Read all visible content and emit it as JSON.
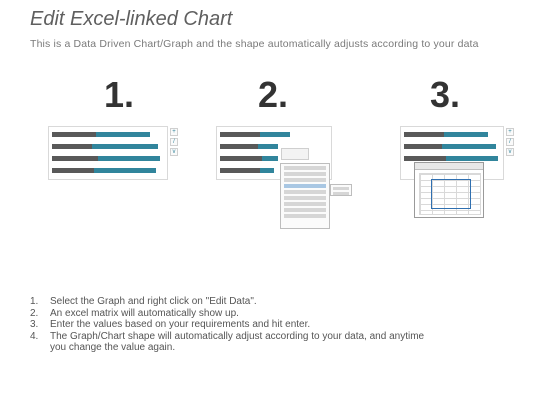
{
  "header": {
    "title": "Edit Excel-linked Chart",
    "subtitle": "This is a Data Driven Chart/Graph and the shape automatically adjusts according to your data"
  },
  "steps": [
    {
      "number": "1."
    },
    {
      "number": "2."
    },
    {
      "number": "3."
    }
  ],
  "colors": {
    "dark_bar": "#595959",
    "blue_bar": "#31859c",
    "text": "#555555"
  },
  "instructions": [
    {
      "n": "1.",
      "text": "Select the Graph and right click on \"Edit Data\"."
    },
    {
      "n": "2.",
      "text": "An excel matrix will automatically show up."
    },
    {
      "n": "3.",
      "text": "Enter the values based on your requirements and hit enter."
    },
    {
      "n": "4.",
      "text": "The Graph/Chart shape will automatically adjust according to your data, and anytime you change the value again."
    }
  ]
}
